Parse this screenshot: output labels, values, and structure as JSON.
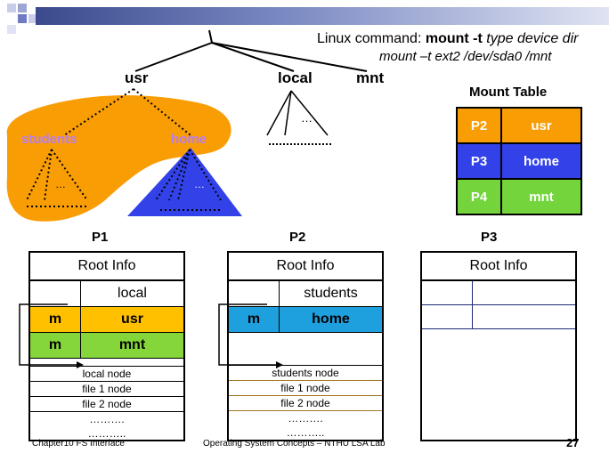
{
  "colors": {
    "orange": "#f99d05",
    "blue": "#3342e8",
    "green": "#73d43c",
    "row_orange": "#ffc000",
    "row_blue": "#1fa0de",
    "row_green": "#84d63a"
  },
  "command": {
    "prefix": "Linux command:",
    "bold": "mount -t",
    "italic": "type device dir",
    "example": "mount –t ext2 /dev/sda0 /mnt"
  },
  "tree": {
    "root": "/",
    "usr": "usr",
    "local": "local",
    "mnt": "mnt",
    "students": "students",
    "home": "home",
    "ellipsis": "…",
    "dots": "…………"
  },
  "mount_table": {
    "title": "Mount Table",
    "rows": [
      {
        "proc": "P2",
        "dir": "usr",
        "color": "#f99d05"
      },
      {
        "proc": "P3",
        "dir": "home",
        "color": "#3342e8"
      },
      {
        "proc": "P4",
        "dir": "mnt",
        "color": "#73d43c"
      }
    ]
  },
  "p1": {
    "label": "P1",
    "root_info": "Root Info",
    "row_local": "local",
    "row_usr_m": "m",
    "row_usr": "usr",
    "row_mnt_m": "m",
    "row_mnt": "mnt",
    "nodes": [
      "local node",
      "file 1 node",
      "file 2 node"
    ],
    "dots": [
      "……….",
      "……….."
    ]
  },
  "p2": {
    "label": "P2",
    "root_info": "Root Info",
    "row_students": "students",
    "row_home_m": "m",
    "row_home": "home",
    "nodes": [
      "students node",
      "file 1 node",
      "file 2 node"
    ],
    "dots": [
      "……….",
      "……….."
    ]
  },
  "p3": {
    "label": "P3",
    "root_info": "Root Info"
  },
  "footer": {
    "left": "Chapter10 FS Interface",
    "center": "Operating System Concepts – NTHU LSA Lab",
    "page": "27"
  }
}
